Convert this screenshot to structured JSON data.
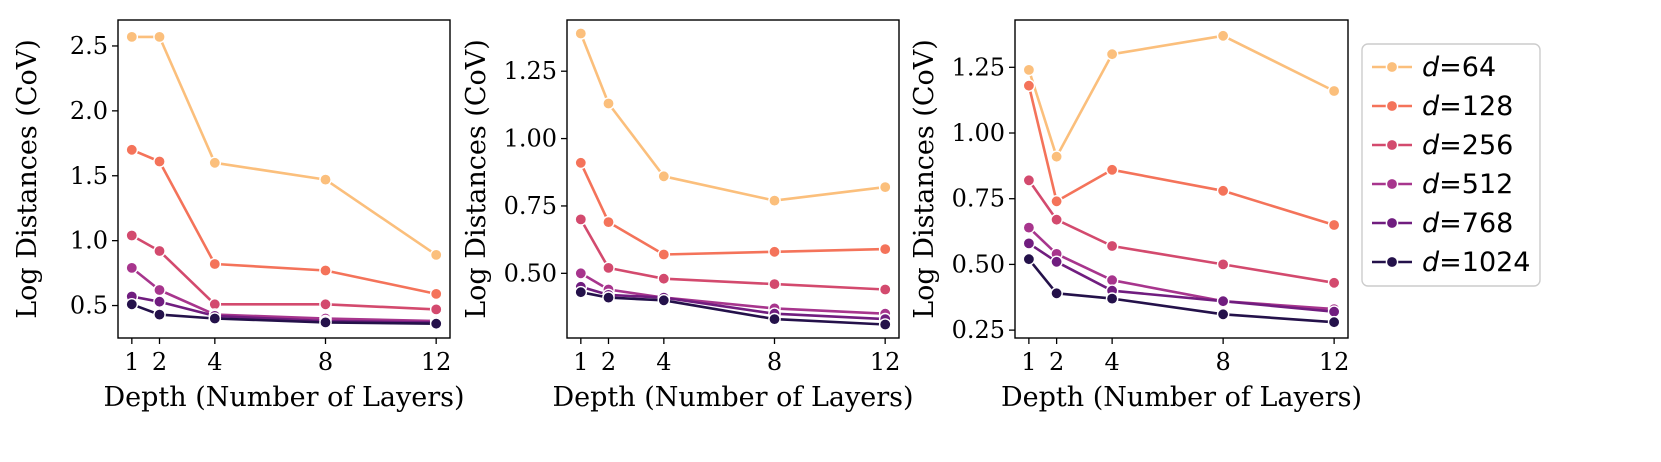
{
  "chart_data": [
    {
      "type": "line",
      "title": "",
      "xlabel": "Depth (Number of Layers)",
      "ylabel": "Log Distances (CoV)",
      "x": [
        1,
        2,
        4,
        8,
        12
      ],
      "xticks": [
        "1",
        "2",
        "4",
        "8",
        "12"
      ],
      "xlim": [
        0.5,
        12.5
      ],
      "ylim": [
        0.25,
        2.7
      ],
      "yticks": [
        0.5,
        1.0,
        1.5,
        2.0,
        2.5
      ],
      "ytick_labels": [
        "0.5",
        "1.0",
        "1.5",
        "2.0",
        "2.5"
      ],
      "grid": false,
      "series": [
        {
          "name": "d=64",
          "values": [
            2.57,
            2.57,
            1.6,
            1.47,
            0.89
          ]
        },
        {
          "name": "d=128",
          "values": [
            1.7,
            1.61,
            0.82,
            0.77,
            0.59
          ]
        },
        {
          "name": "d=256",
          "values": [
            1.04,
            0.92,
            0.51,
            0.51,
            0.47
          ]
        },
        {
          "name": "d=512",
          "values": [
            0.79,
            0.62,
            0.43,
            0.4,
            0.38
          ]
        },
        {
          "name": "d=768",
          "values": [
            0.57,
            0.53,
            0.42,
            0.38,
            0.37
          ]
        },
        {
          "name": "d=1024",
          "values": [
            0.51,
            0.43,
            0.4,
            0.37,
            0.36
          ]
        }
      ]
    },
    {
      "type": "line",
      "title": "",
      "xlabel": "Depth (Number of Layers)",
      "ylabel": "Log Distances (CoV)",
      "x": [
        1,
        2,
        4,
        8,
        12
      ],
      "xticks": [
        "1",
        "2",
        "4",
        "8",
        "12"
      ],
      "xlim": [
        0.5,
        12.5
      ],
      "ylim": [
        0.26,
        1.44
      ],
      "yticks": [
        0.5,
        0.75,
        1.0,
        1.25
      ],
      "ytick_labels": [
        "0.50",
        "0.75",
        "1.00",
        "1.25"
      ],
      "grid": false,
      "series": [
        {
          "name": "d=64",
          "values": [
            1.39,
            1.13,
            0.86,
            0.77,
            0.82
          ]
        },
        {
          "name": "d=128",
          "values": [
            0.91,
            0.69,
            0.57,
            0.58,
            0.59
          ]
        },
        {
          "name": "d=256",
          "values": [
            0.7,
            0.52,
            0.48,
            0.46,
            0.44
          ]
        },
        {
          "name": "d=512",
          "values": [
            0.5,
            0.44,
            0.41,
            0.37,
            0.35
          ]
        },
        {
          "name": "d=768",
          "values": [
            0.45,
            0.42,
            0.41,
            0.35,
            0.33
          ]
        },
        {
          "name": "d=1024",
          "values": [
            0.43,
            0.41,
            0.4,
            0.33,
            0.31
          ]
        }
      ]
    },
    {
      "type": "line",
      "title": "",
      "xlabel": "Depth (Number of Layers)",
      "ylabel": "Log Distances (CoV)",
      "x": [
        1,
        2,
        4,
        8,
        12
      ],
      "xticks": [
        "1",
        "2",
        "4",
        "8",
        "12"
      ],
      "xlim": [
        0.5,
        12.5
      ],
      "ylim": [
        0.22,
        1.43
      ],
      "yticks": [
        0.25,
        0.5,
        0.75,
        1.0,
        1.25
      ],
      "ytick_labels": [
        "0.25",
        "0.50",
        "0.75",
        "1.00",
        "1.25"
      ],
      "grid": false,
      "series": [
        {
          "name": "d=64",
          "values": [
            1.24,
            0.91,
            1.3,
            1.37,
            1.16
          ]
        },
        {
          "name": "d=128",
          "values": [
            1.18,
            0.74,
            0.86,
            0.78,
            0.65
          ]
        },
        {
          "name": "d=256",
          "values": [
            0.82,
            0.67,
            0.57,
            0.5,
            0.43
          ]
        },
        {
          "name": "d=512",
          "values": [
            0.64,
            0.54,
            0.44,
            0.36,
            0.33
          ]
        },
        {
          "name": "d=768",
          "values": [
            0.58,
            0.51,
            0.4,
            0.36,
            0.32
          ]
        },
        {
          "name": "d=1024",
          "values": [
            0.52,
            0.39,
            0.37,
            0.31,
            0.28
          ]
        }
      ]
    }
  ],
  "legend": {
    "placement": "right",
    "entries": [
      {
        "symbol": "d",
        "text": "=64"
      },
      {
        "symbol": "d",
        "text": "=128"
      },
      {
        "symbol": "d",
        "text": "=256"
      },
      {
        "symbol": "d",
        "text": "=512"
      },
      {
        "symbol": "d",
        "text": "=768"
      },
      {
        "symbol": "d",
        "text": "=1024"
      }
    ]
  },
  "colors": {
    "series": [
      "#fbbf7c",
      "#f4735a",
      "#d34a6e",
      "#a7358d",
      "#701d7f",
      "#24114a"
    ],
    "axis": "#000000",
    "legend_border": "#cccccc"
  }
}
